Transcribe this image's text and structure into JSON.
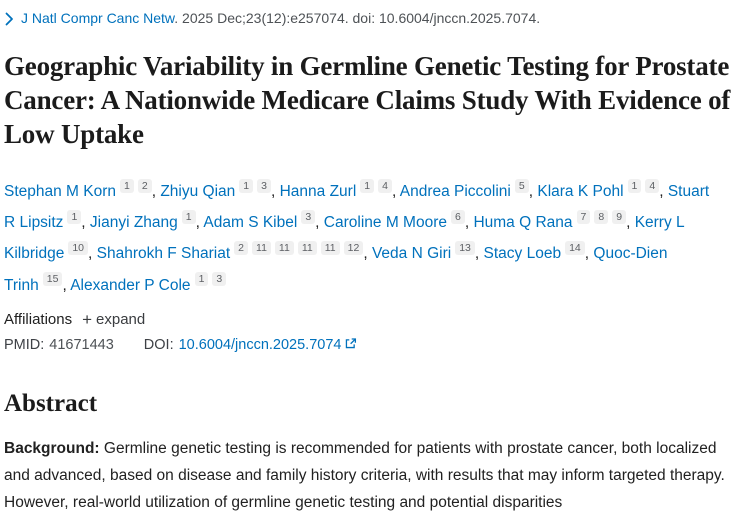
{
  "colors": {
    "link": "#0071bc",
    "dark": "#212121",
    "gray": "#4e5256",
    "sup_bg": "#f0f0f0",
    "sup_text": "#5c5f63"
  },
  "citation": {
    "journal": "J Natl Compr Canc Netw",
    "rest": ". 2025 Dec;23(12):e257074. doi: 10.6004/jnccn.2025.7074."
  },
  "title": "Geographic Variability in Germline Genetic Testing for Prostate Cancer: A Nationwide Medicare Claims Study With Evidence of Low Uptake",
  "authors_separator": ", ",
  "authors": [
    {
      "name": "Stephan M Korn",
      "sups": [
        "1",
        "2"
      ]
    },
    {
      "name": "Zhiyu Qian",
      "sups": [
        "1",
        "3"
      ]
    },
    {
      "name": "Hanna Zurl",
      "sups": [
        "1",
        "4"
      ]
    },
    {
      "name": "Andrea Piccolini",
      "sups": [
        "5"
      ]
    },
    {
      "name": "Klara K Pohl",
      "sups": [
        "1",
        "4"
      ]
    },
    {
      "name": "Stuart R Lipsitz",
      "sups": [
        "1"
      ]
    },
    {
      "name": "Jianyi Zhang",
      "sups": [
        "1"
      ]
    },
    {
      "name": "Adam S Kibel",
      "sups": [
        "3"
      ]
    },
    {
      "name": "Caroline M Moore",
      "sups": [
        "6"
      ]
    },
    {
      "name": "Huma Q Rana",
      "sups": [
        "7",
        "8",
        "9"
      ]
    },
    {
      "name": "Kerry L Kilbridge",
      "sups": [
        "10"
      ]
    },
    {
      "name": "Shahrokh F Shariat",
      "sups": [
        "2",
        "11",
        "11",
        "11",
        "11",
        "12"
      ]
    },
    {
      "name": "Veda N Giri",
      "sups": [
        "13"
      ]
    },
    {
      "name": "Stacy Loeb",
      "sups": [
        "14"
      ]
    },
    {
      "name": "Quoc-Dien Trinh",
      "sups": [
        "15"
      ]
    },
    {
      "name": "Alexander P Cole",
      "sups": [
        "1",
        "3"
      ]
    }
  ],
  "affiliations": {
    "label": "Affiliations",
    "plus": "+",
    "expand_label": "expand"
  },
  "identifiers": {
    "pmid_label": "PMID:",
    "pmid": "41671443",
    "doi_label": "DOI:",
    "doi": "10.6004/jnccn.2025.7074"
  },
  "abstract": {
    "heading": "Abstract",
    "background_label": "Background:",
    "background_text": " Germline genetic testing is recommended for patients with prostate cancer, both localized and advanced, based on disease and family history criteria, with results that may inform targeted therapy. However, real-world utilization of germline genetic testing and potential disparities"
  }
}
